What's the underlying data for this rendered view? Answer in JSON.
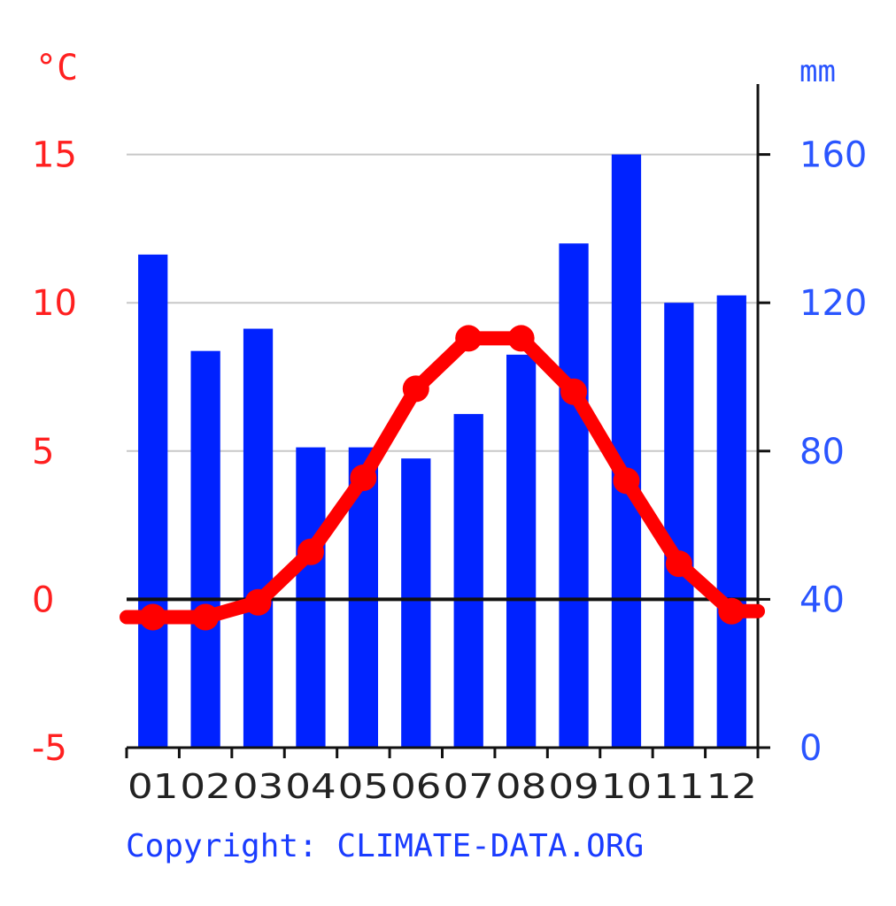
{
  "chart_data": {
    "type": "bar",
    "categories": [
      "01",
      "02",
      "03",
      "04",
      "05",
      "06",
      "07",
      "08",
      "09",
      "10",
      "11",
      "12"
    ],
    "series": [
      {
        "type": "bar",
        "axis": "right",
        "color": "#0022ff",
        "values": [
          133,
          107,
          113,
          81,
          81,
          78,
          90,
          106,
          136,
          160,
          120,
          122
        ]
      },
      {
        "type": "line",
        "axis": "left",
        "color": "#ff0000",
        "values": [
          -0.6,
          -0.6,
          -0.1,
          1.6,
          4.1,
          7.1,
          8.8,
          8.8,
          7.0,
          4.0,
          1.2,
          -0.4
        ]
      }
    ],
    "left_axis": {
      "unit": "°C",
      "ylim": [
        -5,
        16
      ],
      "ticks": [
        -5,
        0,
        5,
        10,
        15
      ],
      "tick_labels": [
        "-5",
        "0",
        "5",
        "10",
        "15"
      ]
    },
    "right_axis": {
      "unit": "mm",
      "ylim": [
        0,
        176
      ],
      "ticks": [
        0,
        40,
        80,
        120,
        160
      ],
      "tick_labels": [
        "0",
        "40",
        "80",
        "120",
        "160"
      ]
    },
    "grid": true,
    "footer": "Copyright: CLIMATE-DATA.ORG",
    "colors": {
      "temperature": "#ff0000",
      "precipitation": "#0022ff",
      "grid": "#c8c8c8",
      "axis": "#111111"
    }
  }
}
